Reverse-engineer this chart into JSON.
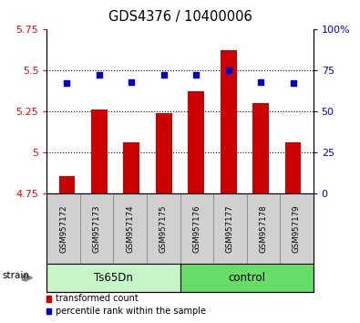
{
  "title": "GDS4376 / 10400006",
  "samples": [
    "GSM957172",
    "GSM957173",
    "GSM957174",
    "GSM957175",
    "GSM957176",
    "GSM957177",
    "GSM957178",
    "GSM957179"
  ],
  "bar_values": [
    4.86,
    5.26,
    5.06,
    5.24,
    5.37,
    5.62,
    5.3,
    5.06
  ],
  "percentile_values": [
    67,
    72,
    68,
    72,
    72,
    75,
    68,
    67
  ],
  "ylim_left": [
    4.75,
    5.75
  ],
  "ylim_right": [
    0,
    100
  ],
  "yticks_left": [
    4.75,
    5.0,
    5.25,
    5.5,
    5.75
  ],
  "yticks_right": [
    0,
    25,
    50,
    75,
    100
  ],
  "ytick_labels_left": [
    "4.75",
    "5",
    "5.25",
    "5.5",
    "5.75"
  ],
  "ytick_labels_right": [
    "0",
    "25",
    "50",
    "75",
    "100%"
  ],
  "groups": [
    {
      "label": "Ts65Dn",
      "start": 0,
      "end": 4,
      "color": "#c8f5c8"
    },
    {
      "label": "control",
      "start": 4,
      "end": 8,
      "color": "#66dd66"
    }
  ],
  "bar_color": "#cc0000",
  "dot_color": "#0000cc",
  "strain_label": "strain",
  "legend_items": [
    {
      "label": "transformed count",
      "color": "#cc0000"
    },
    {
      "label": "percentile rank within the sample",
      "color": "#0000cc"
    }
  ]
}
